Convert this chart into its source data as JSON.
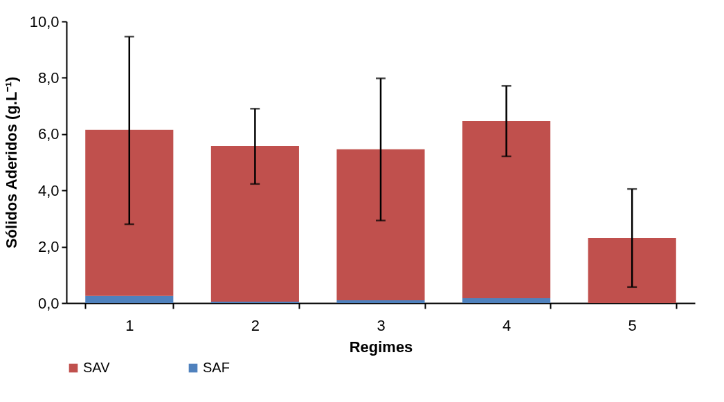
{
  "chart_data": {
    "type": "bar",
    "xlabel": "Regimes",
    "ylabel": "Sólidos Aderidos (g.L⁻¹)",
    "categories": [
      "1",
      "2",
      "3",
      "4",
      "5"
    ],
    "stacked": true,
    "legend": "bottom",
    "series": [
      {
        "name": "SAF",
        "color": "#4f81bd",
        "values": [
          0.25,
          0.05,
          0.1,
          0.17,
          0
        ]
      },
      {
        "name": "SAV",
        "color": "#c0504d",
        "values": [
          5.9,
          5.53,
          5.36,
          6.29,
          2.31
        ],
        "errors": [
          [
            2.8,
            9.46
          ],
          [
            4.23,
            6.9
          ],
          [
            2.93,
            7.98
          ],
          [
            5.21,
            7.71
          ],
          [
            0.57,
            4.05
          ]
        ]
      }
    ],
    "ylim": [
      0,
      10
    ],
    "yticks": [
      {
        "value": 0,
        "label": "0,0"
      },
      {
        "value": 2,
        "label": "2,0"
      },
      {
        "value": 4,
        "label": "4,0"
      },
      {
        "value": 6,
        "label": "6,0"
      },
      {
        "value": 8,
        "label": "8,0"
      },
      {
        "value": 10,
        "label": "10,0"
      }
    ]
  }
}
